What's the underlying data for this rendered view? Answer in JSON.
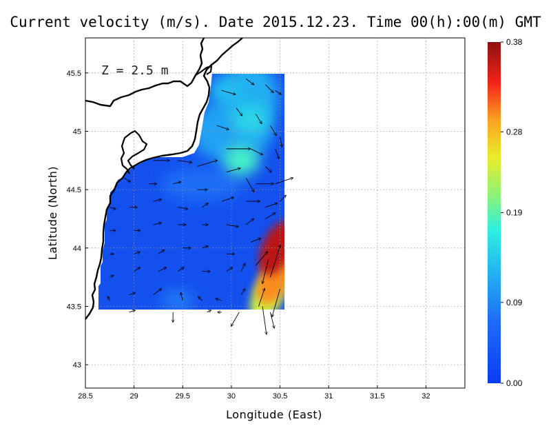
{
  "chart_data": {
    "type": "heatmap",
    "title": "Current velocity (m/s). Date 2015.12.23. Time 00(h):00(m) GMT",
    "xlabel": "Longitude (East)",
    "ylabel": "Latitude (North)",
    "annotation": "Z = 2.5 m",
    "xlim": [
      28.5,
      32.4
    ],
    "ylim": [
      42.8,
      45.8
    ],
    "x_ticks": [
      "28.5",
      "29",
      "29.5",
      "30",
      "30.5",
      "31",
      "31.5",
      "32"
    ],
    "y_ticks": [
      "43",
      "43.5",
      "44",
      "44.5",
      "45",
      "45.5"
    ],
    "grid": true,
    "colorbar": {
      "min": 0.0,
      "max": 0.38,
      "tick_labels": [
        "0.00",
        "0.09",
        "0.19",
        "0.28",
        "0.38"
      ],
      "colormap": "jet"
    },
    "data_extent": {
      "lon": [
        28.65,
        30.55
      ],
      "lat": [
        43.5,
        45.5
      ]
    },
    "hotspots": [
      {
        "lon": 30.47,
        "lat": 44.0,
        "speed": 0.36
      },
      {
        "lon": 30.45,
        "lat": 43.75,
        "speed": 0.3
      },
      {
        "lon": 30.38,
        "lat": 43.6,
        "speed": 0.24
      },
      {
        "lon": 30.1,
        "lat": 44.75,
        "speed": 0.18
      },
      {
        "lon": 30.2,
        "lat": 45.1,
        "speed": 0.15
      },
      {
        "lon": 29.95,
        "lat": 45.35,
        "speed": 0.13
      }
    ],
    "vectors": [
      {
        "lon": 29.2,
        "lat": 44.75,
        "u": 0.08,
        "v": 0.0
      },
      {
        "lon": 29.45,
        "lat": 44.75,
        "u": 0.07,
        "v": -0.01
      },
      {
        "lon": 29.65,
        "lat": 44.7,
        "u": 0.1,
        "v": 0.03
      },
      {
        "lon": 29.95,
        "lat": 44.85,
        "u": 0.12,
        "v": 0.0
      },
      {
        "lon": 30.2,
        "lat": 44.85,
        "u": 0.06,
        "v": -0.03
      },
      {
        "lon": 30.35,
        "lat": 44.7,
        "u": 0.03,
        "v": -0.03
      },
      {
        "lon": 30.45,
        "lat": 44.85,
        "u": 0.02,
        "v": -0.05
      },
      {
        "lon": 29.85,
        "lat": 45.05,
        "u": 0.06,
        "v": -0.02
      },
      {
        "lon": 30.05,
        "lat": 45.2,
        "u": 0.03,
        "v": -0.04
      },
      {
        "lon": 30.25,
        "lat": 45.15,
        "u": 0.03,
        "v": -0.05
      },
      {
        "lon": 30.4,
        "lat": 45.05,
        "u": 0.03,
        "v": -0.05
      },
      {
        "lon": 30.5,
        "lat": 44.95,
        "u": 0.01,
        "v": -0.05
      },
      {
        "lon": 29.9,
        "lat": 45.35,
        "u": 0.07,
        "v": -0.02
      },
      {
        "lon": 30.15,
        "lat": 45.45,
        "u": 0.04,
        "v": -0.03
      },
      {
        "lon": 30.35,
        "lat": 45.4,
        "u": 0.04,
        "v": -0.04
      },
      {
        "lon": 30.45,
        "lat": 45.35,
        "u": 0.03,
        "v": -0.02
      },
      {
        "lon": 29.95,
        "lat": 44.65,
        "u": 0.07,
        "v": 0.02
      },
      {
        "lon": 30.15,
        "lat": 44.6,
        "u": 0.04,
        "v": -0.07
      },
      {
        "lon": 30.25,
        "lat": 44.55,
        "u": 0.09,
        "v": 0.0
      },
      {
        "lon": 30.45,
        "lat": 44.55,
        "u": 0.09,
        "v": 0.03
      },
      {
        "lon": 28.9,
        "lat": 44.6,
        "u": 0.03,
        "v": -0.02
      },
      {
        "lon": 29.15,
        "lat": 44.55,
        "u": 0.04,
        "v": 0.0
      },
      {
        "lon": 29.4,
        "lat": 44.55,
        "u": 0.04,
        "v": 0.01
      },
      {
        "lon": 29.65,
        "lat": 44.5,
        "u": 0.05,
        "v": 0.0
      },
      {
        "lon": 29.9,
        "lat": 44.4,
        "u": 0.06,
        "v": 0.02
      },
      {
        "lon": 30.15,
        "lat": 44.4,
        "u": 0.07,
        "v": 0.0
      },
      {
        "lon": 30.35,
        "lat": 44.35,
        "u": 0.06,
        "v": 0.02
      },
      {
        "lon": 30.5,
        "lat": 44.4,
        "u": 0.03,
        "v": 0.03
      },
      {
        "lon": 28.75,
        "lat": 44.35,
        "u": 0.03,
        "v": -0.01
      },
      {
        "lon": 28.95,
        "lat": 44.35,
        "u": 0.04,
        "v": 0.0
      },
      {
        "lon": 29.2,
        "lat": 44.4,
        "u": 0.04,
        "v": 0.01
      },
      {
        "lon": 29.45,
        "lat": 44.35,
        "u": 0.05,
        "v": -0.01
      },
      {
        "lon": 29.7,
        "lat": 44.35,
        "u": 0.03,
        "v": 0.02
      },
      {
        "lon": 29.95,
        "lat": 44.2,
        "u": 0.06,
        "v": -0.01
      },
      {
        "lon": 30.15,
        "lat": 44.2,
        "u": 0.04,
        "v": 0.03
      },
      {
        "lon": 30.35,
        "lat": 44.25,
        "u": 0.05,
        "v": 0.03
      },
      {
        "lon": 28.75,
        "lat": 44.15,
        "u": 0.03,
        "v": 0.0
      },
      {
        "lon": 29.0,
        "lat": 44.15,
        "u": 0.03,
        "v": 0.0
      },
      {
        "lon": 29.2,
        "lat": 44.2,
        "u": 0.04,
        "v": 0.01
      },
      {
        "lon": 29.45,
        "lat": 44.2,
        "u": 0.04,
        "v": 0.0
      },
      {
        "lon": 29.7,
        "lat": 44.2,
        "u": 0.03,
        "v": 0.0
      },
      {
        "lon": 28.75,
        "lat": 43.95,
        "u": 0.02,
        "v": 0.0
      },
      {
        "lon": 29.0,
        "lat": 43.95,
        "u": 0.03,
        "v": 0.01
      },
      {
        "lon": 29.25,
        "lat": 43.95,
        "u": 0.03,
        "v": 0.02
      },
      {
        "lon": 29.5,
        "lat": 44.0,
        "u": 0.04,
        "v": 0.0
      },
      {
        "lon": 29.7,
        "lat": 44.0,
        "u": 0.03,
        "v": 0.01
      },
      {
        "lon": 29.95,
        "lat": 43.95,
        "u": 0.04,
        "v": 0.0
      },
      {
        "lon": 30.2,
        "lat": 44.05,
        "u": 0.05,
        "v": 0.02
      },
      {
        "lon": 28.75,
        "lat": 43.75,
        "u": 0.02,
        "v": 0.01
      },
      {
        "lon": 29.0,
        "lat": 43.8,
        "u": 0.03,
        "v": 0.02
      },
      {
        "lon": 29.25,
        "lat": 43.8,
        "u": 0.04,
        "v": 0.02
      },
      {
        "lon": 29.45,
        "lat": 43.8,
        "u": 0.03,
        "v": 0.02
      },
      {
        "lon": 29.7,
        "lat": 43.8,
        "u": 0.04,
        "v": 0.0
      },
      {
        "lon": 29.95,
        "lat": 43.8,
        "u": 0.03,
        "v": 0.02
      },
      {
        "lon": 30.1,
        "lat": 43.8,
        "u": 0.02,
        "v": 0.04
      },
      {
        "lon": 30.25,
        "lat": 43.85,
        "u": 0.06,
        "v": 0.07
      },
      {
        "lon": 28.75,
        "lat": 43.55,
        "u": -0.01,
        "v": 0.02
      },
      {
        "lon": 28.95,
        "lat": 43.6,
        "u": 0.03,
        "v": 0.01
      },
      {
        "lon": 29.2,
        "lat": 43.6,
        "u": 0.04,
        "v": 0.03
      },
      {
        "lon": 29.5,
        "lat": 43.55,
        "u": -0.01,
        "v": 0.04
      },
      {
        "lon": 29.7,
        "lat": 43.55,
        "u": -0.02,
        "v": 0.02
      },
      {
        "lon": 29.9,
        "lat": 43.55,
        "u": -0.03,
        "v": 0.01
      },
      {
        "lon": 30.1,
        "lat": 43.6,
        "u": 0.02,
        "v": 0.03
      },
      {
        "lon": 28.95,
        "lat": 43.45,
        "u": 0.03,
        "v": 0.01
      },
      {
        "lon": 29.4,
        "lat": 43.45,
        "u": 0.0,
        "v": -0.05
      },
      {
        "lon": 29.75,
        "lat": 43.45,
        "u": 0.02,
        "v": 0.01
      },
      {
        "lon": 29.9,
        "lat": 43.45,
        "u": -0.02,
        "v": 0.0
      },
      {
        "lon": 30.08,
        "lat": 43.45,
        "u": -0.04,
        "v": -0.07
      },
      {
        "lon": 30.28,
        "lat": 43.5,
        "u": 0.03,
        "v": 0.09
      },
      {
        "lon": 30.4,
        "lat": 43.75,
        "u": 0.05,
        "v": 0.16
      },
      {
        "lon": 30.32,
        "lat": 43.5,
        "u": 0.02,
        "v": -0.14
      },
      {
        "lon": 30.4,
        "lat": 43.45,
        "u": 0.02,
        "v": -0.08
      },
      {
        "lon": 30.38,
        "lat": 43.9,
        "u": -0.03,
        "v": -0.12
      },
      {
        "lon": 30.5,
        "lat": 43.65,
        "u": -0.04,
        "v": -0.14
      }
    ]
  }
}
